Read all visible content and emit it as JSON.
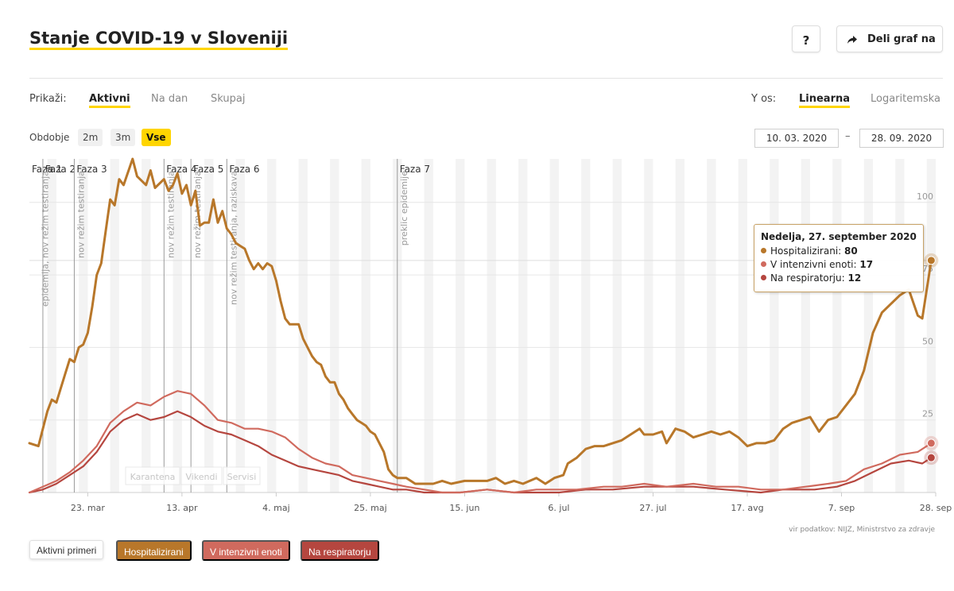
{
  "header": {
    "title": "Stanje COVID-19 v Sloveniji",
    "help_label": "?",
    "share_label": "Deli graf na"
  },
  "controls": {
    "show_label": "Prikaži:",
    "show_options": [
      "Aktivni",
      "Na dan",
      "Skupaj"
    ],
    "show_selected": "Aktivni",
    "yaxis_label": "Y os:",
    "yaxis_options": [
      "Linearna",
      "Logaritemska"
    ],
    "yaxis_selected": "Linearna",
    "period_label": "Obdobje",
    "period_options": [
      "2m",
      "3m",
      "Vse"
    ],
    "period_selected": "Vse",
    "date_from": "10. 03. 2020",
    "date_to": "28. 09. 2020",
    "date_separator": "–"
  },
  "tooltip": {
    "title": "Nedelja, 27. september 2020",
    "rows": [
      {
        "label": "Hospitalizirani: ",
        "value": "80",
        "color": "#b8772a"
      },
      {
        "label": "V intenzivni enoti: ",
        "value": "17",
        "color": "#d06a5e"
      },
      {
        "label": "Na respiratorju: ",
        "value": "12",
        "color": "#b5463f"
      }
    ]
  },
  "source_text": "vir podatkov: NIJZ, Ministrstvo za zdravje",
  "legend": [
    {
      "label": "Aktivni primeri",
      "color": "#ffffff",
      "active": false
    },
    {
      "label": "Hospitalizirani",
      "color": "#b8772a",
      "active": true
    },
    {
      "label": "V intenzivni enoti",
      "color": "#d06a5e",
      "active": true
    },
    {
      "label": "Na respiratorju",
      "color": "#b5463f",
      "active": true
    }
  ],
  "chart_data": {
    "type": "line",
    "x_start": "2020-03-10",
    "x_end": "2020-09-28",
    "ylim": [
      0,
      115
    ],
    "y_ticks": [
      25,
      50,
      75,
      100
    ],
    "y_axis_side": "right",
    "x_ticks": [
      {
        "date": "2020-03-23",
        "label": "23. mar"
      },
      {
        "date": "2020-04-13",
        "label": "13. apr"
      },
      {
        "date": "2020-05-04",
        "label": "4. maj"
      },
      {
        "date": "2020-05-25",
        "label": "25. maj"
      },
      {
        "date": "2020-06-15",
        "label": "15. jun"
      },
      {
        "date": "2020-07-06",
        "label": "6. jul"
      },
      {
        "date": "2020-07-27",
        "label": "27. jul"
      },
      {
        "date": "2020-08-17",
        "label": "17. avg"
      },
      {
        "date": "2020-09-07",
        "label": "7. sep"
      },
      {
        "date": "2020-09-28",
        "label": "28. sep"
      }
    ],
    "phases": [
      {
        "date": "2020-03-10",
        "label": "Faza 1"
      },
      {
        "date": "2020-03-13",
        "label": "Faza 2"
      },
      {
        "date": "2020-03-20",
        "label": "Faza 3"
      },
      {
        "date": "2020-04-09",
        "label": "Faza 4"
      },
      {
        "date": "2020-04-15",
        "label": "Faza 5"
      },
      {
        "date": "2020-04-23",
        "label": "Faza 6"
      },
      {
        "date": "2020-05-31",
        "label": "Faza 7"
      }
    ],
    "events": [
      {
        "date": "2020-03-12",
        "label": "epidemija, nov režim testiranja"
      },
      {
        "date": "2020-03-20",
        "label": "nov režim testiranja"
      },
      {
        "date": "2020-04-09",
        "label": "nov režim testiranja"
      },
      {
        "date": "2020-04-15",
        "label": "nov režim testiranja"
      },
      {
        "date": "2020-04-23",
        "label": "nov režim testiranja, raziskava"
      },
      {
        "date": "2020-05-31",
        "label": "preklic epidemije"
      }
    ],
    "markings": [
      "Karantena",
      "Vikendi",
      "Servisi"
    ],
    "series": [
      {
        "name": "Hospitalizirani",
        "color": "#b8772a",
        "points": [
          [
            "2020-03-10",
            17
          ],
          [
            "2020-03-12",
            16
          ],
          [
            "2020-03-14",
            28
          ],
          [
            "2020-03-15",
            32
          ],
          [
            "2020-03-16",
            31
          ],
          [
            "2020-03-17",
            36
          ],
          [
            "2020-03-18",
            41
          ],
          [
            "2020-03-19",
            46
          ],
          [
            "2020-03-20",
            45
          ],
          [
            "2020-03-21",
            50
          ],
          [
            "2020-03-22",
            51
          ],
          [
            "2020-03-23",
            55
          ],
          [
            "2020-03-24",
            64
          ],
          [
            "2020-03-25",
            75
          ],
          [
            "2020-03-26",
            79
          ],
          [
            "2020-03-27",
            90
          ],
          [
            "2020-03-28",
            101
          ],
          [
            "2020-03-29",
            99
          ],
          [
            "2020-03-30",
            108
          ],
          [
            "2020-03-31",
            106
          ],
          [
            "2020-04-02",
            115
          ],
          [
            "2020-04-03",
            109
          ],
          [
            "2020-04-05",
            106
          ],
          [
            "2020-04-06",
            111
          ],
          [
            "2020-04-07",
            105
          ],
          [
            "2020-04-09",
            108
          ],
          [
            "2020-04-10",
            104
          ],
          [
            "2020-04-11",
            106
          ],
          [
            "2020-04-12",
            110
          ],
          [
            "2020-04-13",
            103
          ],
          [
            "2020-04-14",
            106
          ],
          [
            "2020-04-15",
            99
          ],
          [
            "2020-04-16",
            104
          ],
          [
            "2020-04-17",
            92
          ],
          [
            "2020-04-18",
            93
          ],
          [
            "2020-04-19",
            93
          ],
          [
            "2020-04-20",
            101
          ],
          [
            "2020-04-21",
            93
          ],
          [
            "2020-04-22",
            97
          ],
          [
            "2020-04-23",
            91
          ],
          [
            "2020-04-24",
            89
          ],
          [
            "2020-04-25",
            86
          ],
          [
            "2020-04-26",
            85
          ],
          [
            "2020-04-27",
            84
          ],
          [
            "2020-04-28",
            80
          ],
          [
            "2020-04-29",
            77
          ],
          [
            "2020-04-30",
            79
          ],
          [
            "2020-05-01",
            77
          ],
          [
            "2020-05-02",
            79
          ],
          [
            "2020-05-03",
            78
          ],
          [
            "2020-05-04",
            73
          ],
          [
            "2020-05-05",
            66
          ],
          [
            "2020-05-06",
            60
          ],
          [
            "2020-05-07",
            58
          ],
          [
            "2020-05-08",
            58
          ],
          [
            "2020-05-09",
            58
          ],
          [
            "2020-05-10",
            53
          ],
          [
            "2020-05-11",
            50
          ],
          [
            "2020-05-12",
            47
          ],
          [
            "2020-05-13",
            45
          ],
          [
            "2020-05-14",
            44
          ],
          [
            "2020-05-15",
            40
          ],
          [
            "2020-05-16",
            38
          ],
          [
            "2020-05-17",
            38
          ],
          [
            "2020-05-18",
            34
          ],
          [
            "2020-05-19",
            32
          ],
          [
            "2020-05-20",
            29
          ],
          [
            "2020-05-21",
            27
          ],
          [
            "2020-05-22",
            25
          ],
          [
            "2020-05-23",
            24
          ],
          [
            "2020-05-24",
            23
          ],
          [
            "2020-05-25",
            21
          ],
          [
            "2020-05-26",
            20
          ],
          [
            "2020-05-27",
            17
          ],
          [
            "2020-05-28",
            14
          ],
          [
            "2020-05-29",
            8
          ],
          [
            "2020-05-30",
            6
          ],
          [
            "2020-05-31",
            5
          ],
          [
            "2020-06-02",
            5
          ],
          [
            "2020-06-04",
            3
          ],
          [
            "2020-06-08",
            3
          ],
          [
            "2020-06-10",
            4
          ],
          [
            "2020-06-12",
            3
          ],
          [
            "2020-06-15",
            4
          ],
          [
            "2020-06-20",
            4
          ],
          [
            "2020-06-22",
            5
          ],
          [
            "2020-06-24",
            3
          ],
          [
            "2020-06-26",
            4
          ],
          [
            "2020-06-28",
            3
          ],
          [
            "2020-07-01",
            5
          ],
          [
            "2020-07-03",
            3
          ],
          [
            "2020-07-05",
            5
          ],
          [
            "2020-07-07",
            6
          ],
          [
            "2020-07-08",
            10
          ],
          [
            "2020-07-10",
            12
          ],
          [
            "2020-07-12",
            15
          ],
          [
            "2020-07-14",
            16
          ],
          [
            "2020-07-16",
            16
          ],
          [
            "2020-07-18",
            17
          ],
          [
            "2020-07-20",
            18
          ],
          [
            "2020-07-22",
            20
          ],
          [
            "2020-07-24",
            22
          ],
          [
            "2020-07-25",
            20
          ],
          [
            "2020-07-27",
            20
          ],
          [
            "2020-07-29",
            21
          ],
          [
            "2020-07-30",
            17
          ],
          [
            "2020-08-01",
            22
          ],
          [
            "2020-08-03",
            21
          ],
          [
            "2020-08-05",
            19
          ],
          [
            "2020-08-07",
            20
          ],
          [
            "2020-08-09",
            21
          ],
          [
            "2020-08-11",
            20
          ],
          [
            "2020-08-13",
            21
          ],
          [
            "2020-08-15",
            19
          ],
          [
            "2020-08-17",
            16
          ],
          [
            "2020-08-19",
            17
          ],
          [
            "2020-08-21",
            17
          ],
          [
            "2020-08-23",
            18
          ],
          [
            "2020-08-25",
            22
          ],
          [
            "2020-08-27",
            24
          ],
          [
            "2020-08-29",
            25
          ],
          [
            "2020-08-31",
            26
          ],
          [
            "2020-09-02",
            21
          ],
          [
            "2020-09-04",
            25
          ],
          [
            "2020-09-06",
            26
          ],
          [
            "2020-09-08",
            30
          ],
          [
            "2020-09-10",
            34
          ],
          [
            "2020-09-12",
            42
          ],
          [
            "2020-09-14",
            55
          ],
          [
            "2020-09-16",
            62
          ],
          [
            "2020-09-18",
            65
          ],
          [
            "2020-09-20",
            68
          ],
          [
            "2020-09-22",
            70
          ],
          [
            "2020-09-24",
            61
          ],
          [
            "2020-09-25",
            60
          ],
          [
            "2020-09-27",
            80
          ]
        ]
      },
      {
        "name": "V intenzivni enoti",
        "color": "#d06a5e",
        "points": [
          [
            "2020-03-10",
            0
          ],
          [
            "2020-03-13",
            2
          ],
          [
            "2020-03-16",
            4
          ],
          [
            "2020-03-19",
            7
          ],
          [
            "2020-03-22",
            11
          ],
          [
            "2020-03-25",
            16
          ],
          [
            "2020-03-28",
            24
          ],
          [
            "2020-03-31",
            28
          ],
          [
            "2020-04-03",
            31
          ],
          [
            "2020-04-06",
            30
          ],
          [
            "2020-04-09",
            33
          ],
          [
            "2020-04-12",
            35
          ],
          [
            "2020-04-15",
            34
          ],
          [
            "2020-04-18",
            30
          ],
          [
            "2020-04-21",
            25
          ],
          [
            "2020-04-24",
            24
          ],
          [
            "2020-04-27",
            22
          ],
          [
            "2020-04-30",
            22
          ],
          [
            "2020-05-03",
            21
          ],
          [
            "2020-05-06",
            19
          ],
          [
            "2020-05-09",
            15
          ],
          [
            "2020-05-12",
            12
          ],
          [
            "2020-05-15",
            10
          ],
          [
            "2020-05-18",
            9
          ],
          [
            "2020-05-21",
            6
          ],
          [
            "2020-05-24",
            5
          ],
          [
            "2020-05-27",
            4
          ],
          [
            "2020-05-30",
            3
          ],
          [
            "2020-06-02",
            2
          ],
          [
            "2020-06-06",
            1
          ],
          [
            "2020-06-10",
            0
          ],
          [
            "2020-06-14",
            0
          ],
          [
            "2020-06-20",
            1
          ],
          [
            "2020-06-26",
            0
          ],
          [
            "2020-07-01",
            1
          ],
          [
            "2020-07-06",
            1
          ],
          [
            "2020-07-10",
            1
          ],
          [
            "2020-07-16",
            2
          ],
          [
            "2020-07-20",
            2
          ],
          [
            "2020-07-25",
            3
          ],
          [
            "2020-07-30",
            2
          ],
          [
            "2020-08-05",
            3
          ],
          [
            "2020-08-10",
            2
          ],
          [
            "2020-08-15",
            2
          ],
          [
            "2020-08-20",
            1
          ],
          [
            "2020-08-25",
            1
          ],
          [
            "2020-08-30",
            2
          ],
          [
            "2020-09-04",
            3
          ],
          [
            "2020-09-08",
            4
          ],
          [
            "2020-09-12",
            8
          ],
          [
            "2020-09-16",
            10
          ],
          [
            "2020-09-20",
            13
          ],
          [
            "2020-09-24",
            14
          ],
          [
            "2020-09-27",
            17
          ]
        ]
      },
      {
        "name": "Na respiratorju",
        "color": "#b5463f",
        "points": [
          [
            "2020-03-10",
            0
          ],
          [
            "2020-03-13",
            1
          ],
          [
            "2020-03-16",
            3
          ],
          [
            "2020-03-19",
            6
          ],
          [
            "2020-03-22",
            9
          ],
          [
            "2020-03-25",
            14
          ],
          [
            "2020-03-28",
            21
          ],
          [
            "2020-03-31",
            25
          ],
          [
            "2020-04-03",
            27
          ],
          [
            "2020-04-06",
            25
          ],
          [
            "2020-04-09",
            26
          ],
          [
            "2020-04-12",
            28
          ],
          [
            "2020-04-15",
            26
          ],
          [
            "2020-04-18",
            23
          ],
          [
            "2020-04-21",
            21
          ],
          [
            "2020-04-24",
            20
          ],
          [
            "2020-04-27",
            18
          ],
          [
            "2020-04-30",
            16
          ],
          [
            "2020-05-03",
            13
          ],
          [
            "2020-05-06",
            11
          ],
          [
            "2020-05-09",
            9
          ],
          [
            "2020-05-12",
            8
          ],
          [
            "2020-05-15",
            7
          ],
          [
            "2020-05-18",
            6
          ],
          [
            "2020-05-21",
            4
          ],
          [
            "2020-05-24",
            3
          ],
          [
            "2020-05-27",
            2
          ],
          [
            "2020-05-30",
            1
          ],
          [
            "2020-06-02",
            1
          ],
          [
            "2020-06-06",
            0
          ],
          [
            "2020-06-14",
            0
          ],
          [
            "2020-06-20",
            1
          ],
          [
            "2020-06-26",
            0
          ],
          [
            "2020-07-06",
            0
          ],
          [
            "2020-07-12",
            1
          ],
          [
            "2020-07-18",
            1
          ],
          [
            "2020-07-25",
            2
          ],
          [
            "2020-07-30",
            2
          ],
          [
            "2020-08-05",
            2
          ],
          [
            "2020-08-12",
            1
          ],
          [
            "2020-08-20",
            0
          ],
          [
            "2020-08-25",
            1
          ],
          [
            "2020-09-01",
            1
          ],
          [
            "2020-09-06",
            2
          ],
          [
            "2020-09-10",
            4
          ],
          [
            "2020-09-14",
            7
          ],
          [
            "2020-09-18",
            10
          ],
          [
            "2020-09-22",
            11
          ],
          [
            "2020-09-25",
            10
          ],
          [
            "2020-09-27",
            12
          ]
        ]
      }
    ]
  }
}
